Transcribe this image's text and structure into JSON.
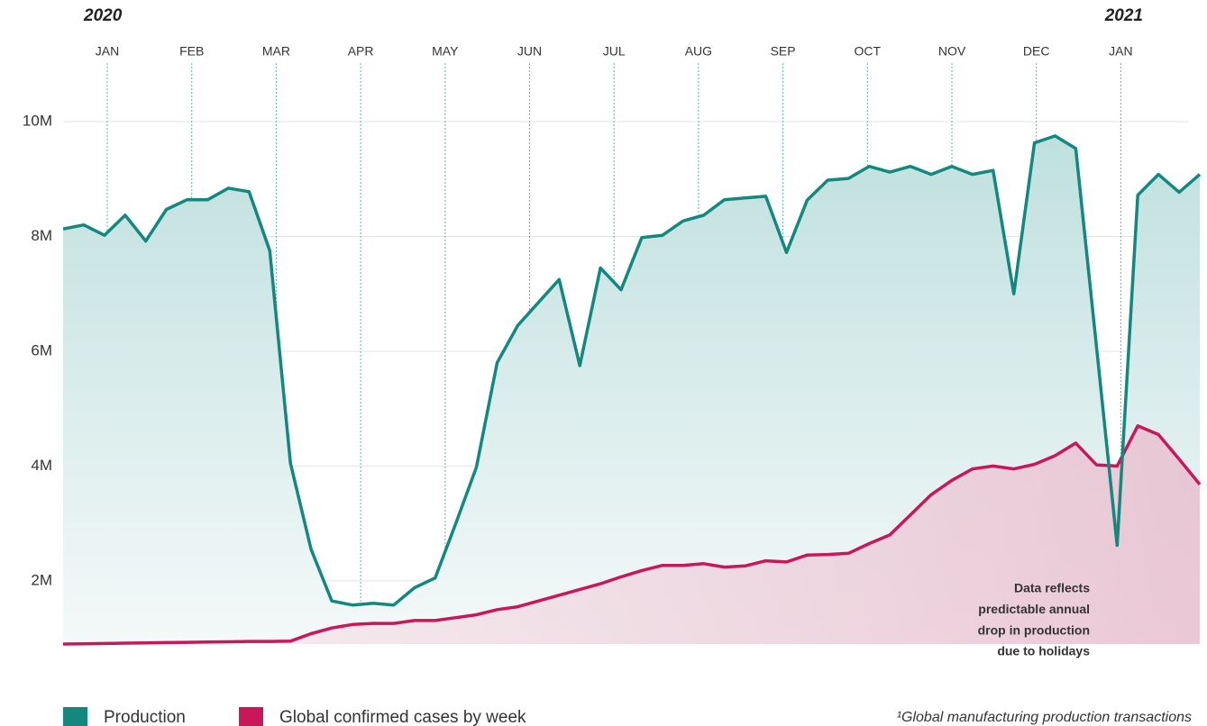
{
  "chart_data": {
    "type": "area",
    "years": [
      "2020",
      "2021"
    ],
    "months": [
      "JAN",
      "FEB",
      "MAR",
      "APR",
      "MAY",
      "JUN",
      "JUL",
      "AUG",
      "SEP",
      "OCT",
      "NOV",
      "DEC",
      "JAN"
    ],
    "categories": [
      null,
      null,
      null,
      null,
      null,
      null,
      null,
      null,
      null,
      null,
      null,
      null,
      null,
      null,
      null,
      null,
      null,
      null,
      null,
      null,
      null,
      null,
      null,
      null,
      null,
      null,
      null,
      null,
      null,
      null,
      null,
      null,
      null,
      null,
      null,
      null,
      null,
      null,
      null,
      null,
      null,
      null,
      null,
      null,
      null,
      null,
      null,
      null,
      null,
      null,
      null,
      null,
      null,
      null,
      null,
      null
    ],
    "series": [
      {
        "name": "Production",
        "color": "#12887f",
        "values": [
          8130000,
          8200000,
          8020000,
          8370000,
          7920000,
          8470000,
          8640000,
          8640000,
          8840000,
          8780000,
          7750000,
          4050000,
          2550000,
          1650000,
          1580000,
          1610000,
          1580000,
          1880000,
          2050000,
          3000000,
          3980000,
          5800000,
          6450000,
          6850000,
          7250000,
          5750000,
          7450000,
          7070000,
          7980000,
          8020000,
          8270000,
          8370000,
          8640000,
          8670000,
          8700000,
          7720000,
          8630000,
          8980000,
          9010000,
          9220000,
          9120000,
          9220000,
          9080000,
          9220000,
          9080000,
          9150000,
          7000000,
          9630000,
          9750000,
          9530000,
          6080000,
          2620000,
          8720000,
          9080000,
          8770000,
          9080000
        ]
      },
      {
        "name": "Global confirmed cases by week",
        "color": "#c8175a",
        "values": [
          900000,
          905000,
          910000,
          915000,
          920000,
          925000,
          930000,
          935000,
          940000,
          945000,
          945000,
          950000,
          1080000,
          1180000,
          1240000,
          1260000,
          1260000,
          1310000,
          1310000,
          1360000,
          1410000,
          1500000,
          1550000,
          1650000,
          1750000,
          1850000,
          1950000,
          2070000,
          2180000,
          2270000,
          2270000,
          2300000,
          2240000,
          2260000,
          2350000,
          2330000,
          2450000,
          2460000,
          2480000,
          2650000,
          2800000,
          3150000,
          3500000,
          3750000,
          3950000,
          4000000,
          3950000,
          4030000,
          4180000,
          4400000,
          4020000,
          4000000,
          4700000,
          4550000,
          4120000,
          3680000
        ]
      }
    ],
    "ylim": [
      900000,
      10600000
    ],
    "yticks": [
      {
        "value": 2000000,
        "label": "2M"
      },
      {
        "value": 4000000,
        "label": "4M"
      },
      {
        "value": 6000000,
        "label": "6M"
      },
      {
        "value": 8000000,
        "label": "8M"
      },
      {
        "value": 10000000,
        "label": "10M"
      }
    ],
    "grid": true,
    "annotation": [
      "Data reflects",
      "predictable annual",
      "drop in production",
      "due to holidays"
    ],
    "footnote": "¹Global manufacturing production transactions"
  }
}
